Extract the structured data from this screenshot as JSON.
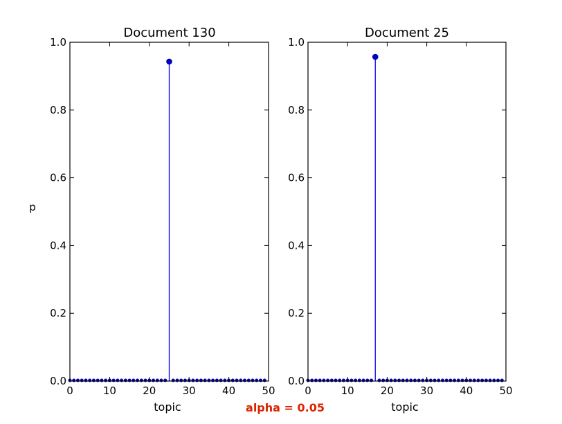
{
  "chart_data": [
    {
      "type": "stem",
      "title": "Document 130",
      "xlabel": "topic",
      "ylabel": "p",
      "xlim": [
        0,
        50
      ],
      "ylim": [
        0,
        1.0
      ],
      "xticks": [
        0,
        10,
        20,
        30,
        40,
        50
      ],
      "yticks": [
        0.0,
        0.2,
        0.4,
        0.6,
        0.8,
        1.0
      ],
      "grid": false,
      "n_topics": 50,
      "baseline_value": 0.002,
      "peak": {
        "x": 25,
        "y": 0.943
      }
    },
    {
      "type": "stem",
      "title": "Document 25",
      "xlabel": "topic",
      "ylabel": "",
      "xlim": [
        0,
        50
      ],
      "ylim": [
        0,
        1.0
      ],
      "xticks": [
        0,
        10,
        20,
        30,
        40,
        50
      ],
      "yticks": [
        0.0,
        0.2,
        0.4,
        0.6,
        0.8,
        1.0
      ],
      "grid": false,
      "n_topics": 50,
      "baseline_value": 0.002,
      "peak": {
        "x": 17,
        "y": 0.957
      }
    }
  ],
  "annotation": {
    "text": "alpha = 0.05",
    "color": "#dd2200"
  },
  "colors": {
    "stem": "#0000ff",
    "marker": "#0000cc"
  }
}
